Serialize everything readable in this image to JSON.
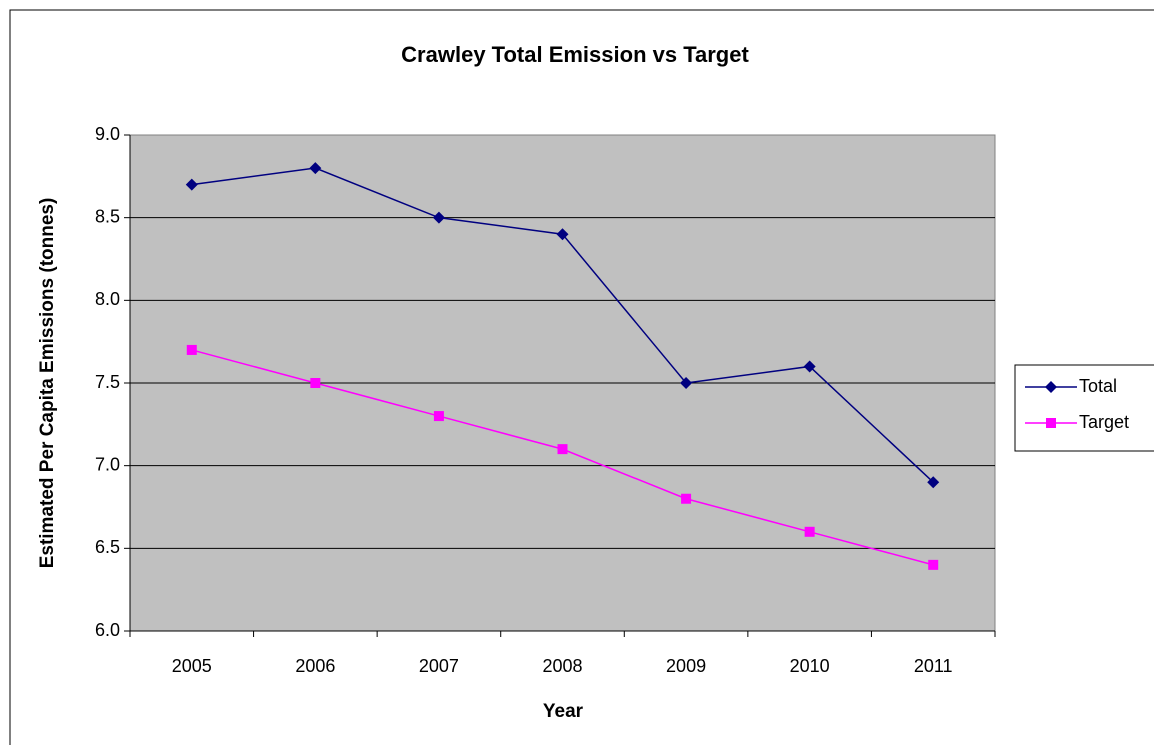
{
  "chart_data": {
    "type": "line",
    "title": "Crawley Total Emission vs Target",
    "x_label": "Year",
    "y_label": "Estimated Per Capita Emissions (tonnes)",
    "categories": [
      "2005",
      "2006",
      "2007",
      "2008",
      "2009",
      "2010",
      "2011"
    ],
    "series": [
      {
        "name": "Total",
        "color": "#000080",
        "marker": "diamond",
        "values": [
          8.7,
          8.8,
          8.5,
          8.4,
          7.5,
          7.6,
          6.9
        ]
      },
      {
        "name": "Target",
        "color": "#ff00ff",
        "marker": "square",
        "values": [
          7.7,
          7.5,
          7.3,
          7.1,
          6.8,
          6.6,
          6.4
        ]
      }
    ],
    "ylim": [
      6,
      9
    ],
    "yticks": [
      {
        "value": 6,
        "label": "6.0"
      },
      {
        "value": 6.5,
        "label": "6.5"
      },
      {
        "value": 7,
        "label": "7.0"
      },
      {
        "value": 7.5,
        "label": "7.5"
      },
      {
        "value": 8,
        "label": "8.0"
      },
      {
        "value": 8.5,
        "label": "8.5"
      },
      {
        "value": 9,
        "label": "9.0"
      }
    ],
    "grid": true,
    "legend": "right"
  }
}
